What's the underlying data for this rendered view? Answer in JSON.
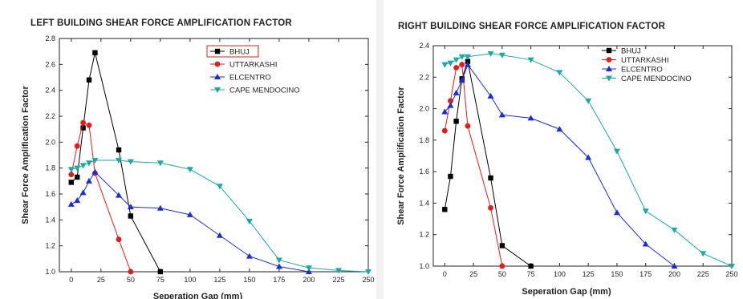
{
  "chart_data": [
    {
      "type": "line",
      "title": "LEFT BUILDING SHEAR FORCE AMPLIFICATION FACTOR",
      "xlabel": "Seperation Gap (mm)",
      "ylabel": "Shear Force Amplification Factor",
      "xlim": [
        -10,
        250
      ],
      "ylim": [
        1.0,
        2.8
      ],
      "xticks": [
        0,
        25,
        50,
        75,
        100,
        125,
        150,
        175,
        200,
        225,
        250
      ],
      "yticks": [
        1.0,
        1.2,
        1.4,
        1.6,
        1.8,
        2.0,
        2.2,
        2.4,
        2.6,
        2.8
      ],
      "legend": "top-right",
      "series": [
        {
          "name": "BHUJ",
          "color": "#000000",
          "marker": "square",
          "x": [
            0,
            5,
            10,
            15,
            20,
            40,
            50,
            75
          ],
          "y": [
            1.69,
            1.73,
            2.11,
            2.48,
            2.69,
            1.94,
            1.43,
            1.0
          ]
        },
        {
          "name": "UTTARKASHI",
          "color": "#e31b1b",
          "marker": "circle",
          "x": [
            0,
            5,
            10,
            15,
            20,
            40,
            50
          ],
          "y": [
            1.75,
            1.97,
            2.15,
            2.13,
            1.76,
            1.25,
            1.0
          ]
        },
        {
          "name": "ELCENTRO",
          "color": "#1c2bd8",
          "marker": "triangle-up",
          "x": [
            0,
            5,
            10,
            15,
            20,
            40,
            50,
            75,
            100,
            125,
            150,
            175,
            200
          ],
          "y": [
            1.52,
            1.55,
            1.61,
            1.7,
            1.77,
            1.59,
            1.5,
            1.49,
            1.44,
            1.28,
            1.12,
            1.04,
            1.0
          ]
        },
        {
          "name": "CAPE MENDOCINO",
          "color": "#1ca9a3",
          "marker": "triangle-down",
          "x": [
            0,
            5,
            10,
            15,
            20,
            40,
            50,
            75,
            100,
            125,
            150,
            175,
            200,
            225,
            250
          ],
          "y": [
            1.79,
            1.8,
            1.82,
            1.84,
            1.86,
            1.86,
            1.85,
            1.84,
            1.79,
            1.66,
            1.39,
            1.09,
            1.03,
            1.01,
            1.0
          ]
        }
      ]
    },
    {
      "type": "line",
      "title": "RIGHT BUILDING SHEAR FORCE AMPLIFICATION FACTOR",
      "xlabel": "Seperation Gap (mm)",
      "ylabel": "Shear Force Amplification Factor",
      "xlim": [
        -10,
        250
      ],
      "ylim": [
        1.0,
        2.4
      ],
      "xticks": [
        0,
        25,
        50,
        75,
        100,
        125,
        150,
        175,
        200,
        225,
        250
      ],
      "yticks": [
        1.0,
        1.2,
        1.4,
        1.6,
        1.8,
        2.0,
        2.2,
        2.4
      ],
      "legend": "top-right",
      "series": [
        {
          "name": "BHUJ",
          "color": "#000000",
          "marker": "square",
          "x": [
            0,
            5,
            10,
            15,
            20,
            40,
            50,
            75
          ],
          "y": [
            1.36,
            1.57,
            1.92,
            2.19,
            2.3,
            1.56,
            1.13,
            1.0
          ]
        },
        {
          "name": "UTTARKASHI",
          "color": "#e31b1b",
          "marker": "circle",
          "x": [
            0,
            5,
            10,
            15,
            20,
            40,
            50
          ],
          "y": [
            1.86,
            2.05,
            2.26,
            2.28,
            1.89,
            1.37,
            1.0
          ]
        },
        {
          "name": "ELCENTRO",
          "color": "#1c2bd8",
          "marker": "triangle-up",
          "x": [
            0,
            5,
            10,
            15,
            20,
            40,
            50,
            75,
            100,
            125,
            150,
            175,
            200
          ],
          "y": [
            1.98,
            2.02,
            2.1,
            2.18,
            2.28,
            2.08,
            1.96,
            1.94,
            1.87,
            1.69,
            1.34,
            1.14,
            1.0
          ]
        },
        {
          "name": "CAPE MENDOCINO",
          "color": "#1ca9a3",
          "marker": "triangle-down",
          "x": [
            0,
            5,
            10,
            15,
            20,
            40,
            50,
            75,
            100,
            125,
            150,
            175,
            200,
            225,
            250
          ],
          "y": [
            2.28,
            2.29,
            2.31,
            2.33,
            2.33,
            2.35,
            2.34,
            2.31,
            2.23,
            2.05,
            1.73,
            1.35,
            1.23,
            1.08,
            1.0
          ]
        }
      ]
    }
  ]
}
